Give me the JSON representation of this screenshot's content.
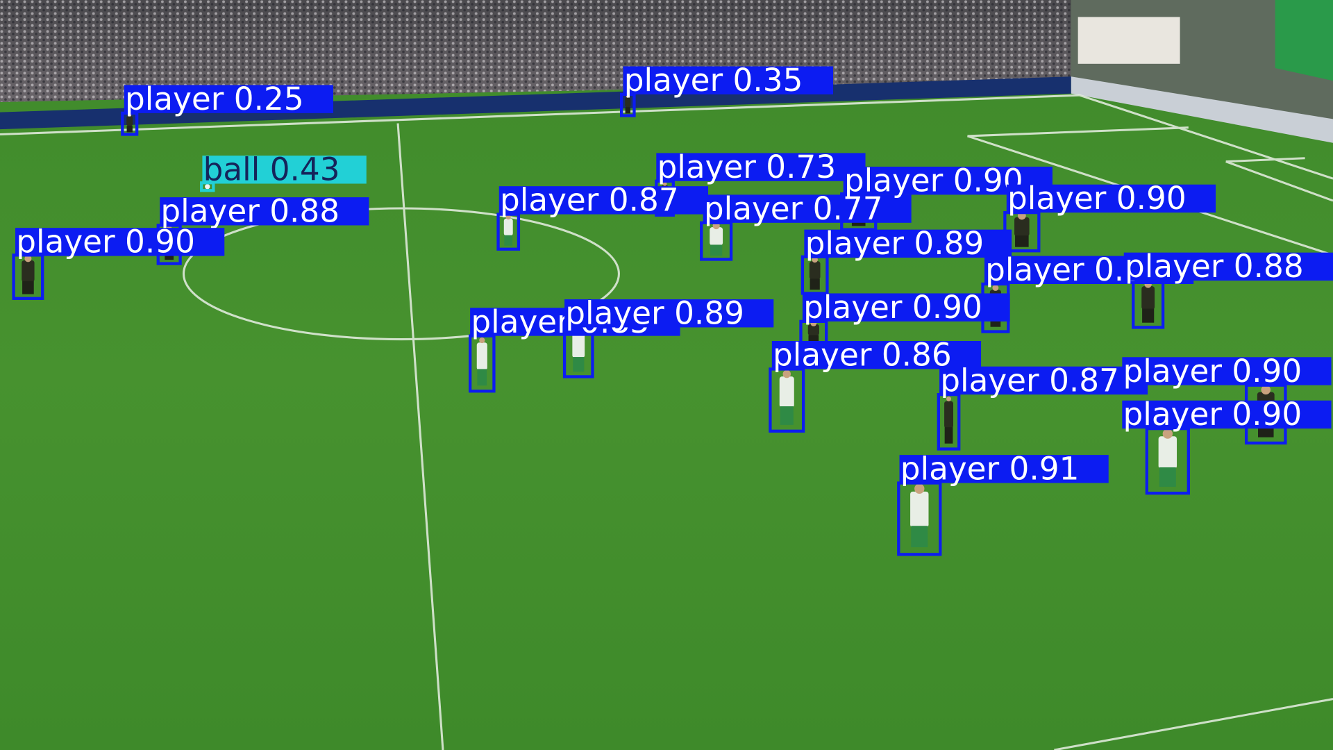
{
  "detections": [
    "player 0.25",
    "player 0.35",
    "ball 0.43",
    "player 0.88",
    "player 0.90",
    "player 0.87",
    "player 0.73",
    "player 0.77",
    "player 0.90",
    "player 0.90",
    "player 0.89",
    "player 0.91",
    "player 0.88",
    "player 0.90",
    "player 0.85",
    "player 0.89",
    "player 0.86",
    "player 0.87",
    "player 0.90",
    "player 0.90",
    "player 0.91"
  ]
}
